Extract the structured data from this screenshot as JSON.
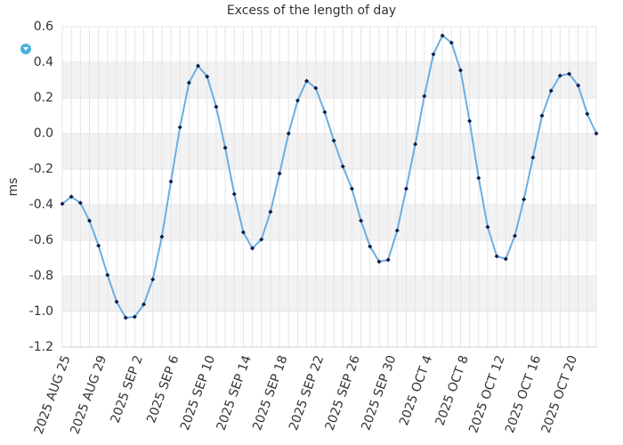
{
  "chart_data": {
    "type": "line",
    "title": "Excess of the length of day",
    "y_label": "ms",
    "categories": [
      "2025 AUG 25",
      null,
      null,
      null,
      "2025 AUG 29",
      null,
      null,
      null,
      "2025 SEP 2",
      null,
      null,
      null,
      "2025 SEP 6",
      null,
      null,
      null,
      "2025 SEP 10",
      null,
      null,
      null,
      "2025 SEP 14",
      null,
      null,
      null,
      "2025 SEP 18",
      null,
      null,
      null,
      "2025 SEP 22",
      null,
      null,
      null,
      "2025 SEP 26",
      null,
      null,
      null,
      "2025 SEP 30",
      null,
      null,
      null,
      "2025 OCT 4",
      null,
      null,
      null,
      "2025 OCT 8",
      null,
      null,
      null,
      "2025 OCT 12",
      null,
      null,
      null,
      "2025 OCT 16",
      null,
      null,
      null,
      "2025 OCT 20",
      null,
      null,
      null
    ],
    "series": [
      {
        "name": "Excess of the length of day",
        "color": "#6aaee0",
        "marker_color": "#0a1a4a",
        "values": [
          -0.395,
          -0.355,
          -0.39,
          -0.49,
          -0.63,
          -0.795,
          -0.945,
          -1.035,
          -1.03,
          -0.96,
          -0.82,
          -0.58,
          -0.27,
          0.035,
          0.285,
          0.38,
          0.32,
          0.15,
          -0.08,
          -0.34,
          -0.555,
          -0.645,
          -0.595,
          -0.44,
          -0.225,
          0.0,
          0.185,
          0.295,
          0.255,
          0.12,
          -0.04,
          -0.185,
          -0.31,
          -0.49,
          -0.635,
          -0.72,
          -0.71,
          -0.545,
          -0.31,
          -0.06,
          0.21,
          0.445,
          0.55,
          0.51,
          0.355,
          0.07,
          -0.25,
          -0.525,
          -0.69,
          -0.705,
          -0.575,
          -0.37,
          -0.135,
          0.1,
          0.24,
          0.325,
          0.335,
          0.27,
          0.11,
          0.0
        ]
      }
    ],
    "ylim": [
      -1.2,
      0.6
    ],
    "yticks": [
      0.6,
      0.4,
      0.2,
      {
        "value": 0,
        "label": "0.0"
      },
      -0.2,
      -0.4,
      -0.6,
      -0.8,
      {
        "value": -1,
        "label": "-1.0"
      },
      -1.2
    ],
    "grid": true
  }
}
